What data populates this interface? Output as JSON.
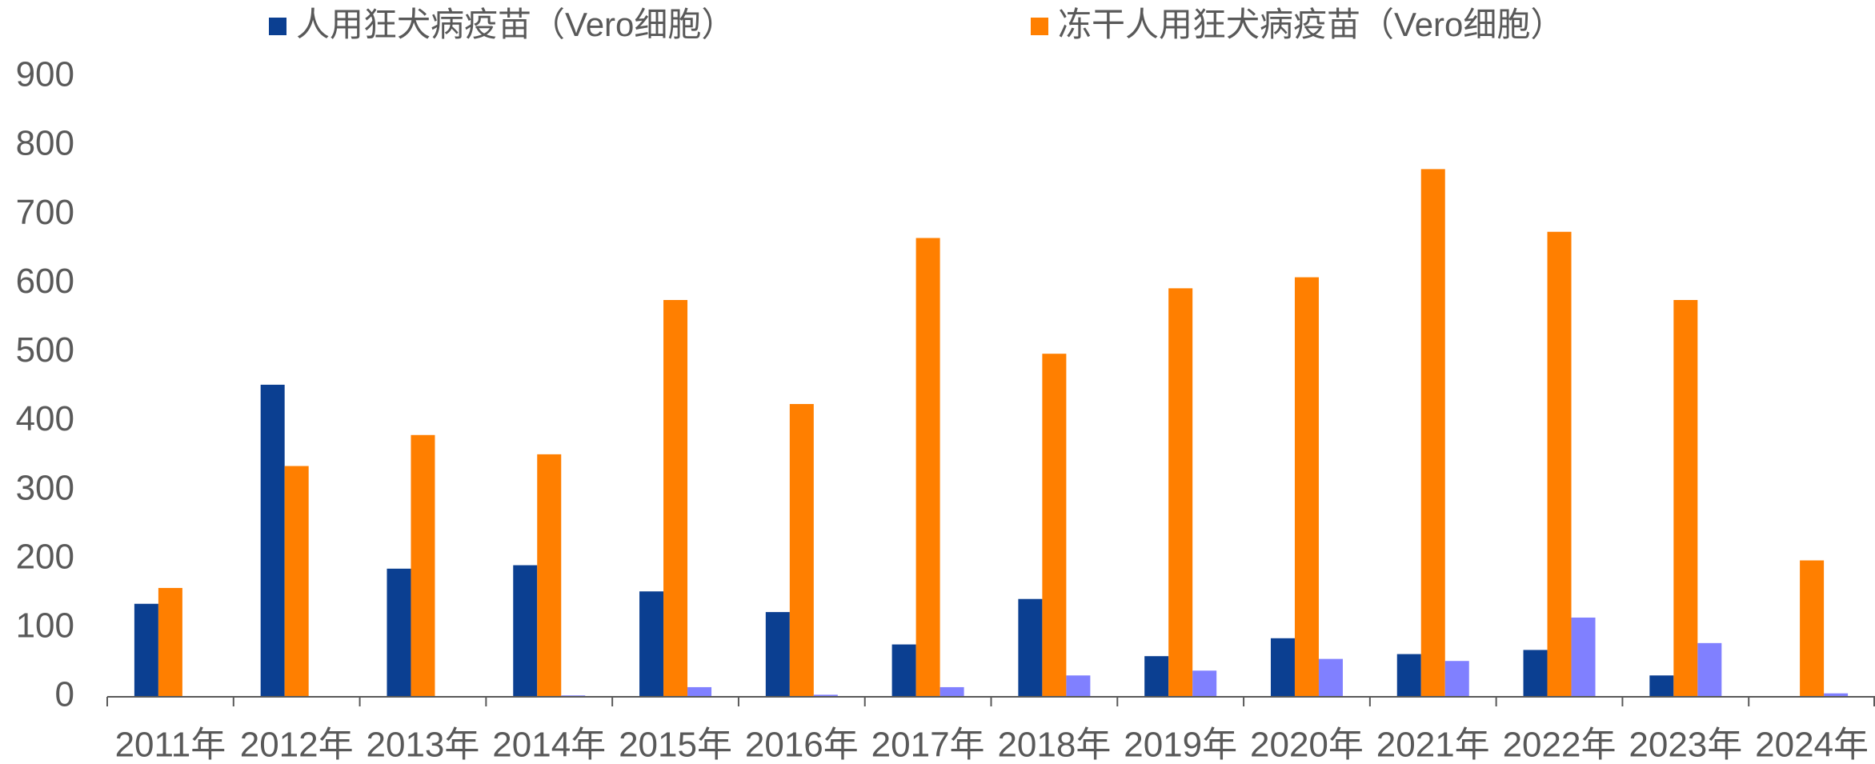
{
  "chart_data": {
    "type": "bar",
    "categories": [
      "2011年",
      "2012年",
      "2013年",
      "2014年",
      "2015年",
      "2016年",
      "2017年",
      "2018年",
      "2019年",
      "2020年",
      "2021年",
      "2022年",
      "2023年",
      "2024年"
    ],
    "series": [
      {
        "name": "人用狂犬病疫苗（Vero细胞）",
        "color": "#0b3f91",
        "values": [
          135,
          453,
          186,
          191,
          153,
          123,
          76,
          142,
          59,
          85,
          62,
          68,
          31,
          0
        ]
      },
      {
        "name": "冻干人用狂犬病疫苗（Vero细胞）",
        "color": "#ff7f00",
        "values": [
          158,
          335,
          380,
          352,
          576,
          425,
          666,
          498,
          593,
          609,
          766,
          675,
          576,
          198
        ]
      },
      {
        "color": "#8080ff",
        "values": [
          0,
          0,
          0,
          2,
          14,
          3,
          14,
          31,
          38,
          55,
          52,
          115,
          78,
          5
        ]
      }
    ],
    "ylim": [
      0,
      900
    ],
    "yticks": [
      0,
      100,
      200,
      300,
      400,
      500,
      600,
      700,
      800,
      900
    ],
    "grid": false,
    "legend": "top"
  }
}
